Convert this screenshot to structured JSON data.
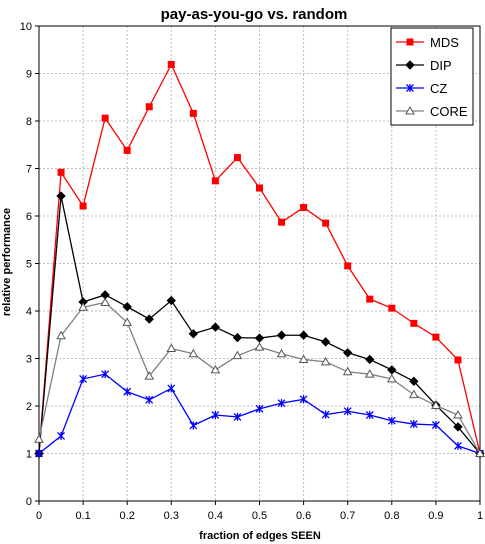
{
  "chart_data": {
    "type": "line",
    "title": "pay-as-you-go vs. random",
    "xlabel": "fraction of edges SEEN",
    "ylabel": "relative performance",
    "xlim": [
      0,
      1
    ],
    "ylim": [
      0,
      10
    ],
    "x_ticks": [
      "0",
      "0.1",
      "0.2",
      "0.3",
      "0.4",
      "0.5",
      "0.6",
      "0.7",
      "0.8",
      "0.9",
      "1"
    ],
    "y_ticks": [
      "0",
      "1",
      "2",
      "3",
      "4",
      "5",
      "6",
      "7",
      "8",
      "9",
      "10"
    ],
    "grid": true,
    "legend_position": "top-right",
    "x": [
      0,
      0.05,
      0.1,
      0.15,
      0.2,
      0.25,
      0.3,
      0.35,
      0.4,
      0.45,
      0.5,
      0.55,
      0.6,
      0.65,
      0.7,
      0.75,
      0.8,
      0.85,
      0.9,
      0.95,
      1
    ],
    "series": [
      {
        "name": "MDS",
        "color": "#ff0000",
        "marker": "square",
        "values": [
          1.0,
          6.92,
          6.21,
          8.06,
          7.38,
          8.3,
          9.19,
          8.16,
          6.74,
          7.23,
          6.59,
          5.87,
          6.18,
          5.85,
          4.95,
          4.25,
          4.06,
          3.74,
          3.45,
          2.97,
          1.0
        ]
      },
      {
        "name": "DIP",
        "color": "#000000",
        "marker": "diamond",
        "values": [
          1.0,
          6.42,
          4.19,
          4.34,
          4.09,
          3.83,
          4.22,
          3.52,
          3.66,
          3.44,
          3.43,
          3.49,
          3.49,
          3.35,
          3.12,
          2.98,
          2.76,
          2.52,
          2.02,
          1.56,
          1.0
        ]
      },
      {
        "name": "CZ",
        "color": "#0000ff",
        "marker": "star",
        "values": [
          1.0,
          1.37,
          2.57,
          2.67,
          2.3,
          2.13,
          2.37,
          1.59,
          1.81,
          1.77,
          1.94,
          2.06,
          2.14,
          1.82,
          1.89,
          1.81,
          1.69,
          1.62,
          1.6,
          1.16,
          1.0
        ]
      },
      {
        "name": "CORE",
        "color": "#808080",
        "marker": "triangle",
        "values": [
          1.3,
          3.48,
          4.08,
          4.18,
          3.76,
          2.63,
          3.21,
          3.1,
          2.76,
          3.06,
          3.24,
          3.1,
          2.98,
          2.93,
          2.72,
          2.67,
          2.57,
          2.24,
          2.01,
          1.81,
          1.0
        ]
      }
    ]
  }
}
